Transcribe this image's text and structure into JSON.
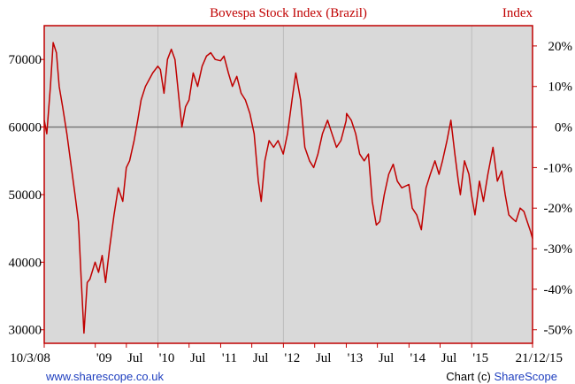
{
  "colors": {
    "line": "#c00000",
    "plot_bg": "#d9d9d9",
    "grid": "#bdbdbd",
    "zero_line": "#7a7a7a",
    "frame": "#c00000"
  },
  "chart_data": {
    "type": "line",
    "title": "Bovespa Stock Index (Brazil)",
    "right_title": "Index",
    "x_tick_labels": [
      "10/3/08",
      "'09",
      "Jul",
      "'10",
      "Jul",
      "'11",
      "Jul",
      "'12",
      "Jul",
      "'13",
      "Jul",
      "'14",
      "Jul",
      "'15",
      "21/12/15"
    ],
    "x_range": [
      "2008-03-10",
      "2015-12-21"
    ],
    "y_left": {
      "ticks": [
        30000,
        40000,
        50000,
        60000,
        70000
      ],
      "range": [
        28000,
        75000
      ]
    },
    "y_right": {
      "ticks": [
        "20%",
        "10%",
        "0%",
        "-10%",
        "-20%",
        "-30%",
        "-40%",
        "-50%"
      ],
      "values": [
        20,
        10,
        0,
        -10,
        -20,
        -30,
        -40,
        -50
      ]
    },
    "reference_line": 60000,
    "grid": true,
    "series": [
      {
        "x": [
          "2008-03-10",
          "2008-03-25",
          "2008-04-15",
          "2008-05-01",
          "2008-05-20",
          "2008-06-05",
          "2008-06-25",
          "2008-07-20",
          "2008-08-15",
          "2008-09-05",
          "2008-09-25",
          "2008-10-10",
          "2008-10-27",
          "2008-11-15",
          "2008-12-01",
          "2008-12-31",
          "2009-01-20",
          "2009-02-10",
          "2009-03-02",
          "2009-03-25",
          "2009-04-20",
          "2009-05-15",
          "2009-06-10",
          "2009-07-01",
          "2009-07-20",
          "2009-08-15",
          "2009-09-05",
          "2009-09-25",
          "2009-10-20",
          "2009-11-10",
          "2009-12-01",
          "2009-12-31",
          "2010-01-15",
          "2010-02-05",
          "2010-02-25",
          "2010-03-20",
          "2010-04-10",
          "2010-04-30",
          "2010-05-20",
          "2010-06-10",
          "2010-07-01",
          "2010-07-25",
          "2010-08-20",
          "2010-09-15",
          "2010-10-10",
          "2010-11-04",
          "2010-11-30",
          "2010-12-31",
          "2011-01-20",
          "2011-02-15",
          "2011-03-10",
          "2011-04-05",
          "2011-04-30",
          "2011-05-25",
          "2011-06-20",
          "2011-07-15",
          "2011-08-08",
          "2011-08-25",
          "2011-09-15",
          "2011-10-10",
          "2011-11-05",
          "2011-12-01",
          "2011-12-31",
          "2012-01-25",
          "2012-02-20",
          "2012-03-13",
          "2012-04-10",
          "2012-05-05",
          "2012-06-01",
          "2012-06-25",
          "2012-07-20",
          "2012-08-15",
          "2012-09-14",
          "2012-10-10",
          "2012-11-05",
          "2012-12-01",
          "2012-12-31",
          "2013-01-03",
          "2013-01-30",
          "2013-02-25",
          "2013-03-20",
          "2013-04-15",
          "2013-05-10",
          "2013-06-01",
          "2013-06-25",
          "2013-07-15",
          "2013-08-10",
          "2013-09-05",
          "2013-10-01",
          "2013-10-25",
          "2013-11-20",
          "2013-12-31",
          "2014-01-20",
          "2014-02-15",
          "2014-03-14",
          "2014-04-10",
          "2014-05-05",
          "2014-06-01",
          "2014-06-25",
          "2014-07-15",
          "2014-08-10",
          "2014-09-02",
          "2014-09-25",
          "2014-10-15",
          "2014-10-27",
          "2014-11-20",
          "2014-12-16",
          "2014-12-31",
          "2015-01-20",
          "2015-02-15",
          "2015-03-10",
          "2015-04-05",
          "2015-05-05",
          "2015-05-30",
          "2015-06-25",
          "2015-07-15",
          "2015-08-05",
          "2015-08-24",
          "2015-09-15",
          "2015-10-10",
          "2015-11-01",
          "2015-11-20",
          "2015-12-10",
          "2015-12-21"
        ],
        "values": [
          61000,
          59000,
          66000,
          72500,
          71000,
          66000,
          63000,
          59000,
          54000,
          50000,
          46000,
          38000,
          29500,
          37000,
          37500,
          40000,
          38500,
          41000,
          37000,
          42000,
          47000,
          51000,
          49000,
          54000,
          55000,
          58000,
          61000,
          64000,
          66000,
          67000,
          68000,
          69000,
          68500,
          65000,
          70000,
          71500,
          70000,
          65000,
          60000,
          63000,
          64000,
          68000,
          66000,
          69000,
          70500,
          71000,
          70000,
          69800,
          70500,
          68000,
          66000,
          67500,
          65000,
          64000,
          62000,
          59000,
          52000,
          49000,
          55000,
          58000,
          57000,
          58000,
          56000,
          59000,
          64000,
          68000,
          64000,
          57000,
          55000,
          54000,
          56000,
          59000,
          61000,
          59000,
          57000,
          58000,
          60950,
          62000,
          61000,
          59000,
          56000,
          55000,
          56000,
          49000,
          45500,
          46000,
          50000,
          53000,
          54500,
          52000,
          51000,
          51500,
          48000,
          47000,
          44800,
          51000,
          53000,
          55000,
          53000,
          55000,
          58000,
          61000,
          56000,
          52000,
          50000,
          55000,
          53000,
          50000,
          47000,
          52000,
          49000,
          53000,
          57000,
          52000,
          53500,
          50000,
          47000,
          46500,
          46000,
          48000,
          47500,
          46000,
          44500,
          43500
        ]
      }
    ]
  },
  "footer": {
    "website": "www.sharescope.co.uk",
    "credit_prefix": "Chart (c) ",
    "credit_brand": "ShareScope"
  }
}
